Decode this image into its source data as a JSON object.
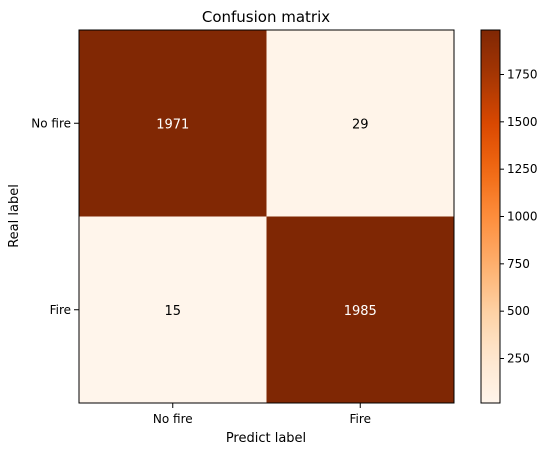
{
  "chart_data": {
    "type": "heatmap",
    "title": "Confusion matrix",
    "xlabel": "Predict label",
    "ylabel": "Real label",
    "x_categories": [
      "No fire",
      "Fire"
    ],
    "y_categories": [
      "No fire",
      "Fire"
    ],
    "values": [
      [
        1971,
        29
      ],
      [
        15,
        1985
      ]
    ],
    "colormap": "Oranges",
    "colorbar": {
      "min": 15,
      "max": 1985,
      "ticks": [
        250,
        500,
        750,
        1000,
        1250,
        1500,
        1750
      ],
      "tick_labels": [
        "250",
        "500",
        "750",
        "1000",
        "1250",
        "1500",
        "1750"
      ]
    },
    "colors": {
      "low": "#fff5eb",
      "high": "#7f2704",
      "text_on_dark": "#ffffff",
      "text_on_light": "#000000"
    }
  }
}
